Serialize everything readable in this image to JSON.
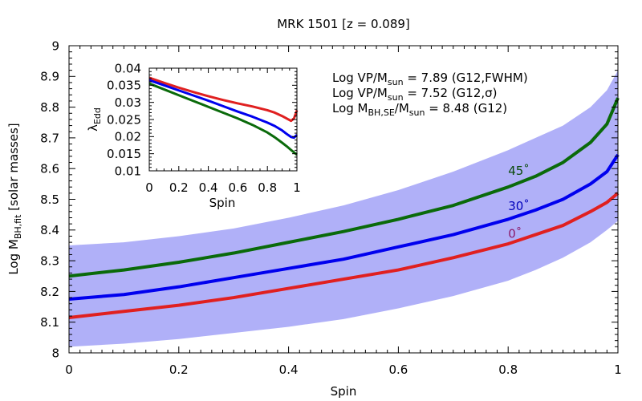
{
  "chart_data": [
    {
      "type": "line",
      "title": "MRK 1501  [z = 0.089]",
      "xlabel": "Spin",
      "ylabel": {
        "main": "Log M",
        "sub": "BH,fit",
        "tail": "  [solar masses]"
      },
      "xlim": [
        0,
        1
      ],
      "ylim": [
        8,
        9
      ],
      "x_ticks": [
        {
          "value": 0,
          "label": "0"
        },
        {
          "value": 0.2,
          "label": "0.2"
        },
        {
          "value": 0.4,
          "label": "0.4"
        },
        {
          "value": 0.6,
          "label": "0.6"
        },
        {
          "value": 0.8,
          "label": "0.8"
        },
        {
          "value": 1,
          "label": "1"
        }
      ],
      "y_ticks": [
        {
          "value": 8,
          "label": "8"
        },
        {
          "value": 8.1,
          "label": "8.1"
        },
        {
          "value": 8.2,
          "label": "8.2"
        },
        {
          "value": 8.3,
          "label": "8.3"
        },
        {
          "value": 8.4,
          "label": "8.4"
        },
        {
          "value": 8.5,
          "label": "8.5"
        },
        {
          "value": 8.6,
          "label": "8.6"
        },
        {
          "value": 8.7,
          "label": "8.7"
        },
        {
          "value": 8.8,
          "label": "8.8"
        },
        {
          "value": 8.9,
          "label": "8.9"
        },
        {
          "value": 9,
          "label": "9"
        }
      ],
      "band": {
        "color": "#b0b0f8",
        "x": [
          0,
          0.1,
          0.2,
          0.3,
          0.4,
          0.5,
          0.6,
          0.7,
          0.8,
          0.85,
          0.9,
          0.95,
          0.98,
          1.0
        ],
        "upper": [
          8.35,
          8.36,
          8.38,
          8.405,
          8.44,
          8.48,
          8.53,
          8.59,
          8.66,
          8.7,
          8.74,
          8.8,
          8.855,
          8.92
        ],
        "lower": [
          8.02,
          8.03,
          8.045,
          8.065,
          8.085,
          8.11,
          8.145,
          8.185,
          8.235,
          8.27,
          8.31,
          8.36,
          8.4,
          8.43
        ]
      },
      "series": [
        {
          "name": "45˚",
          "color": "#0a6a0a",
          "label_color": "#0a4a0a",
          "label_at": [
            0.8,
            8.58
          ],
          "x": [
            0,
            0.1,
            0.2,
            0.3,
            0.4,
            0.5,
            0.6,
            0.7,
            0.8,
            0.85,
            0.9,
            0.95,
            0.98,
            1.0
          ],
          "y": [
            8.25,
            8.27,
            8.295,
            8.325,
            8.36,
            8.395,
            8.435,
            8.48,
            8.54,
            8.575,
            8.62,
            8.685,
            8.745,
            8.83
          ]
        },
        {
          "name": "30˚",
          "color": "#0000ee",
          "label_color": "#0000bb",
          "label_at": [
            0.8,
            8.465
          ],
          "x": [
            0,
            0.1,
            0.2,
            0.3,
            0.4,
            0.5,
            0.6,
            0.7,
            0.8,
            0.85,
            0.9,
            0.95,
            0.98,
            1.0
          ],
          "y": [
            8.175,
            8.19,
            8.215,
            8.245,
            8.275,
            8.305,
            8.345,
            8.385,
            8.435,
            8.465,
            8.5,
            8.55,
            8.59,
            8.645
          ]
        },
        {
          "name": "0˚",
          "color": "#e02020",
          "label_color": "#8b1a6a",
          "label_at": [
            0.8,
            8.375
          ],
          "x": [
            0,
            0.1,
            0.2,
            0.3,
            0.4,
            0.5,
            0.6,
            0.7,
            0.8,
            0.85,
            0.9,
            0.95,
            0.98,
            1.0
          ],
          "y": [
            8.115,
            8.135,
            8.155,
            8.18,
            8.21,
            8.24,
            8.27,
            8.31,
            8.355,
            8.385,
            8.415,
            8.46,
            8.49,
            8.52
          ]
        }
      ],
      "annotations": [
        {
          "parts": [
            [
              "Log VP/M",
              ""
            ],
            [
              "sun",
              "sub"
            ],
            [
              " = 7.89 (G12,FWHM)",
              ""
            ]
          ]
        },
        {
          "parts": [
            [
              "Log VP/M",
              ""
            ],
            [
              "sun",
              "sub"
            ],
            [
              " = 7.52 (G12,σ)",
              ""
            ]
          ]
        },
        {
          "parts": [
            [
              "Log M",
              ""
            ],
            [
              "BH,SE",
              "sub"
            ],
            [
              "/M",
              ""
            ],
            [
              "sun",
              "sub"
            ],
            [
              " = 8.48 (G12)",
              ""
            ]
          ]
        }
      ]
    },
    {
      "type": "line",
      "title": "",
      "xlabel": "Spin",
      "ylabel": {
        "main": "λ",
        "sub": "Edd"
      },
      "xlim": [
        0,
        1
      ],
      "ylim": [
        0.01,
        0.04
      ],
      "x_ticks": [
        {
          "value": 0,
          "label": "0"
        },
        {
          "value": 0.2,
          "label": "0.2"
        },
        {
          "value": 0.4,
          "label": "0.4"
        },
        {
          "value": 0.6,
          "label": "0.6"
        },
        {
          "value": 0.8,
          "label": "0.8"
        },
        {
          "value": 1,
          "label": "1"
        }
      ],
      "y_ticks": [
        {
          "value": 0.01,
          "label": "0.01"
        },
        {
          "value": 0.015,
          "label": "0.015"
        },
        {
          "value": 0.02,
          "label": "0.02"
        },
        {
          "value": 0.025,
          "label": "0.025"
        },
        {
          "value": 0.03,
          "label": "0.03"
        },
        {
          "value": 0.035,
          "label": "0.035"
        },
        {
          "value": 0.04,
          "label": "0.04"
        }
      ],
      "series": [
        {
          "name": "0˚",
          "color": "#e02020",
          "x": [
            0,
            0.1,
            0.2,
            0.3,
            0.4,
            0.5,
            0.6,
            0.7,
            0.8,
            0.85,
            0.9,
            0.93,
            0.96,
            0.98,
            1.0
          ],
          "y": [
            0.0372,
            0.0357,
            0.0343,
            0.033,
            0.0318,
            0.0307,
            0.0297,
            0.0288,
            0.0277,
            0.027,
            0.026,
            0.0253,
            0.0246,
            0.0253,
            0.0277
          ]
        },
        {
          "name": "30˚",
          "color": "#0000ee",
          "x": [
            0,
            0.1,
            0.2,
            0.3,
            0.4,
            0.5,
            0.6,
            0.7,
            0.8,
            0.85,
            0.9,
            0.93,
            0.96,
            0.98,
            1.0
          ],
          "y": [
            0.0365,
            0.035,
            0.0335,
            0.032,
            0.0305,
            0.0289,
            0.0273,
            0.0258,
            0.0241,
            0.0231,
            0.0218,
            0.0208,
            0.0199,
            0.0197,
            0.0205
          ]
        },
        {
          "name": "45˚",
          "color": "#0a6a0a",
          "x": [
            0,
            0.1,
            0.2,
            0.3,
            0.4,
            0.5,
            0.6,
            0.7,
            0.8,
            0.85,
            0.9,
            0.93,
            0.96,
            0.98,
            1.0
          ],
          "y": [
            0.0355,
            0.0338,
            0.0321,
            0.0304,
            0.0287,
            0.027,
            0.0253,
            0.0234,
            0.0212,
            0.0198,
            0.0182,
            0.0172,
            0.0161,
            0.0154,
            0.0147
          ]
        }
      ]
    }
  ]
}
